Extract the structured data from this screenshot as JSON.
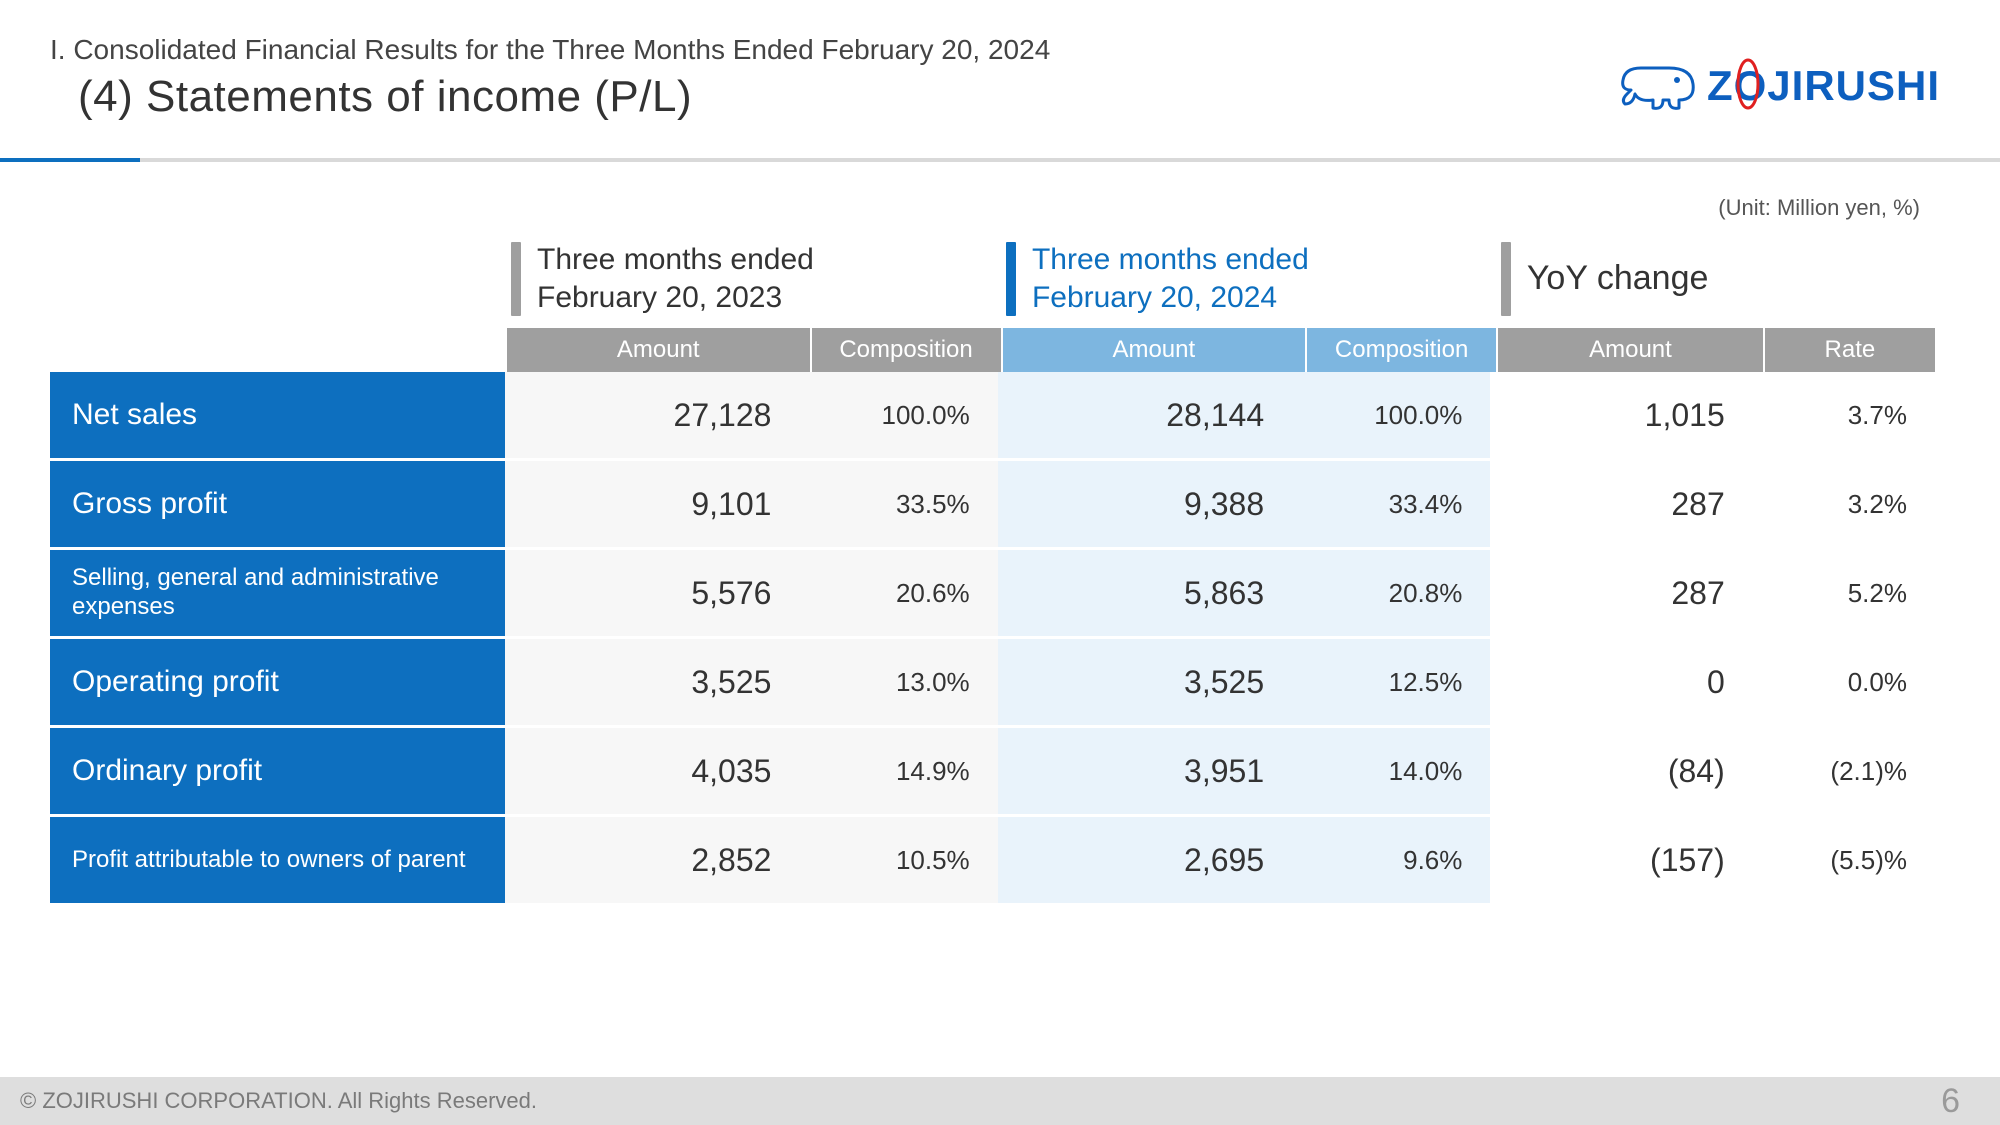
{
  "header": {
    "section_label": "I. Consolidated Financial Results for the Three Months Ended February 20, 2024",
    "title": "(4) Statements of income (P/L)",
    "logo_text_pre": "Z",
    "logo_text_o": "O",
    "logo_text_post": "JIRUSHI"
  },
  "unit_note": "(Unit: Million yen, %)",
  "colors": {
    "accent_blue": "#0d6fbf",
    "header_gray": "#9f9f9f",
    "row_label_bg": "#0d6fbf",
    "period1_bar": "#9f9f9f",
    "period1_text": "#333333",
    "period2_bar": "#0d6fbf",
    "period2_text": "#0d6fbf",
    "period3_bar": "#9f9f9f",
    "period3_text": "#333333",
    "col_group1_bg": "#f7f7f7",
    "col_group2_bg": "#e9f3fb",
    "col_group3_bg": "#ffffff",
    "subhead2_bg": "#7db6e0",
    "logo_blue": "#0d5fbf",
    "logo_ring": "#e02020"
  },
  "periods": [
    {
      "line1": "Three months ended",
      "line2": "February 20, 2023"
    },
    {
      "line1": "Three months ended",
      "line2": "February 20, 2024"
    },
    {
      "line1": "YoY change",
      "line2": ""
    }
  ],
  "subheads": {
    "amount": "Amount",
    "composition": "Composition",
    "rate": "Rate"
  },
  "rows": [
    {
      "label": "Net sales",
      "small": false,
      "amt1": "27,128",
      "comp1": "100.0%",
      "amt2": "28,144",
      "comp2": "100.0%",
      "amt3": "1,015",
      "rate": "3.7%"
    },
    {
      "label": "Gross profit",
      "small": false,
      "amt1": "9,101",
      "comp1": "33.5%",
      "amt2": "9,388",
      "comp2": "33.4%",
      "amt3": "287",
      "rate": "3.2%"
    },
    {
      "label": "Selling, general and administrative expenses",
      "small": true,
      "amt1": "5,576",
      "comp1": "20.6%",
      "amt2": "5,863",
      "comp2": "20.8%",
      "amt3": "287",
      "rate": "5.2%"
    },
    {
      "label": "Operating profit",
      "small": false,
      "amt1": "3,525",
      "comp1": "13.0%",
      "amt2": "3,525",
      "comp2": "12.5%",
      "amt3": "0",
      "rate": "0.0%"
    },
    {
      "label": "Ordinary profit",
      "small": false,
      "amt1": "4,035",
      "comp1": "14.9%",
      "amt2": "3,951",
      "comp2": "14.0%",
      "amt3": "(84)",
      "rate": "(2.1)%"
    },
    {
      "label": "Profit attributable to owners of parent",
      "small": true,
      "amt1": "2,852",
      "comp1": "10.5%",
      "amt2": "2,695",
      "comp2": "9.6%",
      "amt3": "(157)",
      "rate": "(5.5)%"
    }
  ],
  "footer": {
    "copyright": "© ZOJIRUSHI CORPORATION. All Rights Reserved.",
    "page": "6"
  }
}
